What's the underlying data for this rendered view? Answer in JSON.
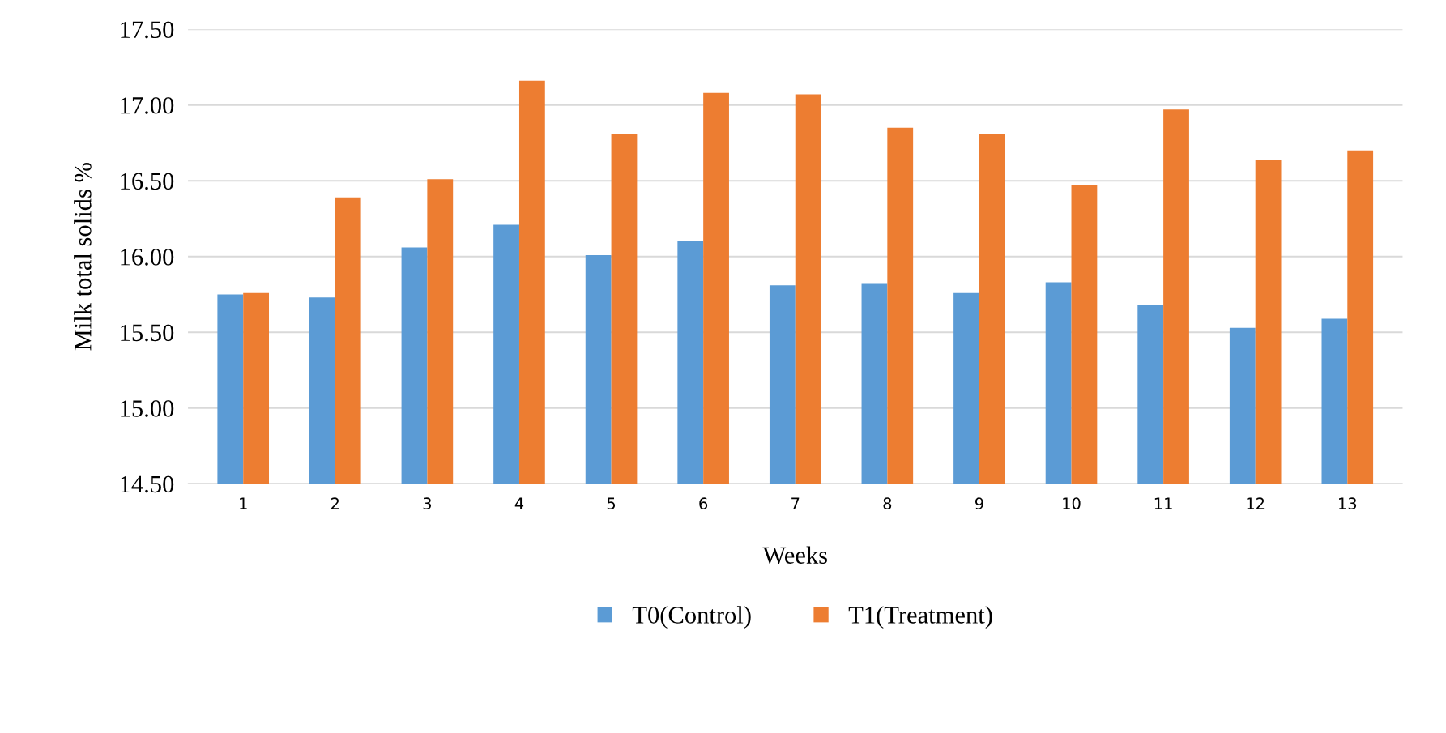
{
  "chart_data": {
    "type": "bar",
    "xlabel": "Weeks",
    "ylabel": "Milk total solids %",
    "categories": [
      "1",
      "2",
      "3",
      "4",
      "5",
      "6",
      "7",
      "8",
      "9",
      "10",
      "11",
      "12",
      "13"
    ],
    "series": [
      {
        "name": "T0(Control)",
        "color": "#5b9bd5",
        "values": [
          15.75,
          15.73,
          16.06,
          16.21,
          16.01,
          16.1,
          15.81,
          15.82,
          15.76,
          15.83,
          15.68,
          15.53,
          15.59
        ]
      },
      {
        "name": "T1(Treatment)",
        "color": "#ed7d31",
        "values": [
          15.76,
          16.39,
          16.51,
          17.16,
          16.81,
          17.08,
          17.07,
          16.85,
          16.81,
          16.47,
          16.97,
          16.64,
          16.7
        ]
      }
    ],
    "ylim": [
      14.5,
      17.5
    ],
    "yticks": [
      {
        "value": 14.5,
        "label": "14.50"
      },
      {
        "value": 15.0,
        "label": "15.00"
      },
      {
        "value": 15.5,
        "label": "15.50"
      },
      {
        "value": 16.0,
        "label": "16.00"
      },
      {
        "value": 16.5,
        "label": "16.50"
      },
      {
        "value": 17.0,
        "label": "17.00"
      },
      {
        "value": 17.5,
        "label": "17.50"
      }
    ],
    "grid": "y",
    "legend": "bottom"
  }
}
